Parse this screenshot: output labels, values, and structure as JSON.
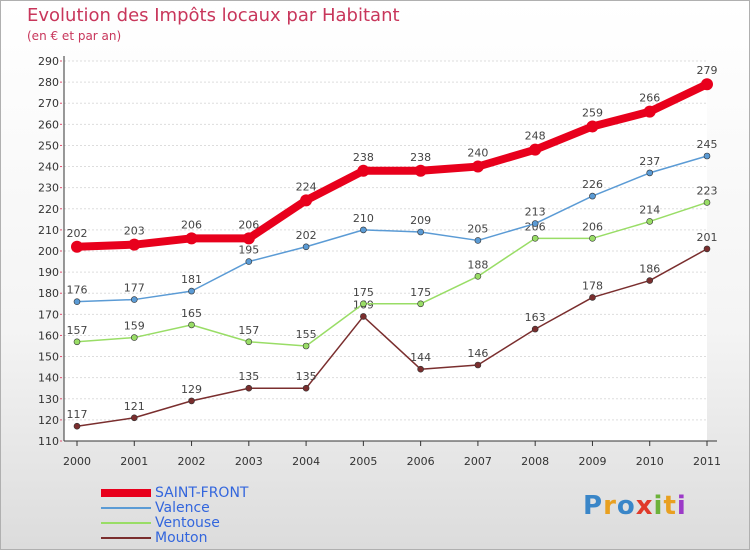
{
  "header": {
    "title": "Evolution des Impôts locaux par Habitant",
    "subtitle": "(en € et par an)"
  },
  "logo": {
    "letters": [
      "P",
      "r",
      "o",
      "x",
      "i",
      "t",
      "i"
    ],
    "colors": [
      "#3a86c8",
      "#e8a020",
      "#3a86c8",
      "#e03a2a",
      "#6cb23a",
      "#e8a020",
      "#9c3ac8"
    ]
  },
  "chart_data": {
    "type": "line",
    "title": "Evolution des Impôts locaux par Habitant",
    "subtitle": "(en € et par an)",
    "xlabel": "",
    "ylabel": "",
    "x": [
      "2000",
      "2001",
      "2002",
      "2003",
      "2004",
      "2005",
      "2006",
      "2007",
      "2008",
      "2009",
      "2010",
      "2011"
    ],
    "ylim": [
      110,
      290
    ],
    "yticks": [
      "110",
      "120",
      "130",
      "140",
      "150",
      "160",
      "170",
      "180",
      "190",
      "200",
      "210",
      "220",
      "230",
      "240",
      "250",
      "260",
      "270",
      "280",
      "290"
    ],
    "grid": "horizontal",
    "legend_position": "bottom-left",
    "series": [
      {
        "name": "SAINT-FRONT",
        "color": "#e8001c",
        "values": [
          202,
          203,
          206,
          206,
          224,
          238,
          238,
          240,
          248,
          259,
          266,
          279
        ],
        "labels": [
          "202",
          "203",
          "206",
          "206",
          "224",
          "238",
          "238",
          "240",
          "248",
          "259",
          "266",
          "279"
        ]
      },
      {
        "name": "Valence",
        "color": "#5b9bd5",
        "values": [
          176,
          177,
          181,
          195,
          202,
          210,
          209,
          205,
          213,
          226,
          237,
          245
        ],
        "labels": [
          "176",
          "177",
          "181",
          "195",
          "202",
          "210",
          "209",
          "205",
          "213",
          "226",
          "237",
          "245"
        ]
      },
      {
        "name": "Ventouse",
        "color": "#99dd66",
        "values": [
          157,
          159,
          165,
          157,
          155,
          175,
          175,
          188,
          206,
          206,
          214,
          223
        ],
        "labels": [
          "157",
          "159",
          "165",
          "157",
          "155",
          "175",
          "175",
          "188",
          "206",
          "206",
          "214",
          "223"
        ]
      },
      {
        "name": "Mouton",
        "color": "#7a2e2e",
        "values": [
          117,
          121,
          129,
          135,
          135,
          169,
          144,
          146,
          163,
          178,
          186,
          201
        ],
        "labels": [
          "117",
          "121",
          "129",
          "135",
          "135",
          "169",
          "144",
          "146",
          "163",
          "178",
          "186",
          "201"
        ]
      }
    ]
  }
}
